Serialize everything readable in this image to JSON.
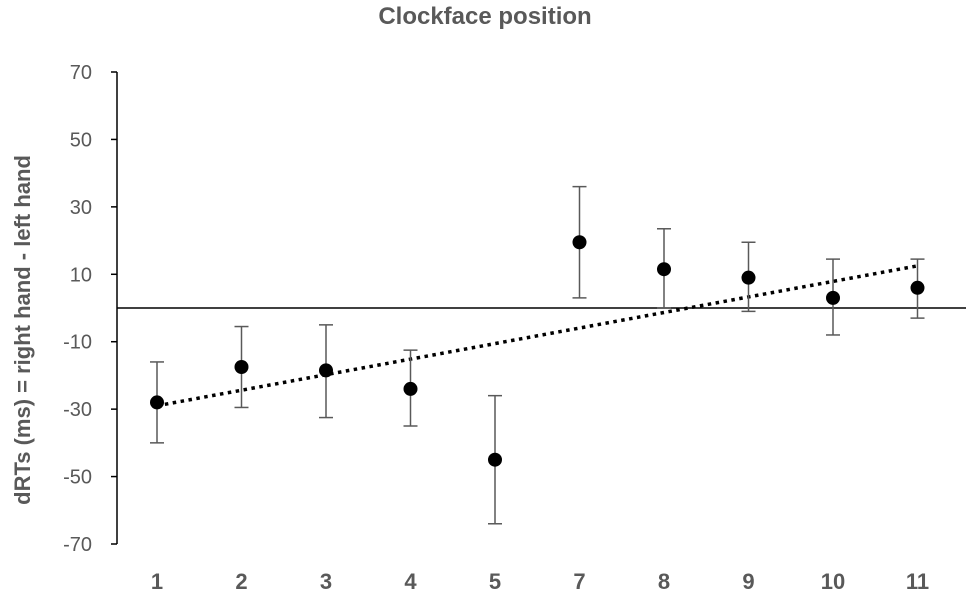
{
  "chart_data": {
    "type": "scatter",
    "title": "Clockface position",
    "xlabel": "",
    "ylabel": "dRTs (ms) = right hand - left hand",
    "categories": [
      "1",
      "2",
      "3",
      "4",
      "5",
      "7",
      "8",
      "9",
      "10",
      "11"
    ],
    "ylim": [
      -70,
      70
    ],
    "yticks": [
      70,
      50,
      30,
      10,
      -10,
      -30,
      -50,
      -70
    ],
    "reference_line_y": 0,
    "grid": false,
    "legend": "none",
    "series": [
      {
        "values": [
          -28,
          -17.5,
          -18.5,
          -24,
          -45,
          19.5,
          11.5,
          9,
          3,
          6
        ],
        "error_low": [
          -40,
          -29.5,
          -32.5,
          -35,
          -64,
          3,
          0,
          -1,
          -8,
          -3
        ],
        "error_high": [
          -16,
          -5.5,
          -5,
          -12.5,
          -26,
          36,
          23.5,
          19.5,
          14.5,
          14.5
        ]
      }
    ],
    "trendline": {
      "type": "linear",
      "start": -29,
      "end": 12.5
    },
    "colors": {
      "marker": "#000000",
      "error_bar": "#595959",
      "axis": "#000000",
      "text": "#595959"
    }
  }
}
